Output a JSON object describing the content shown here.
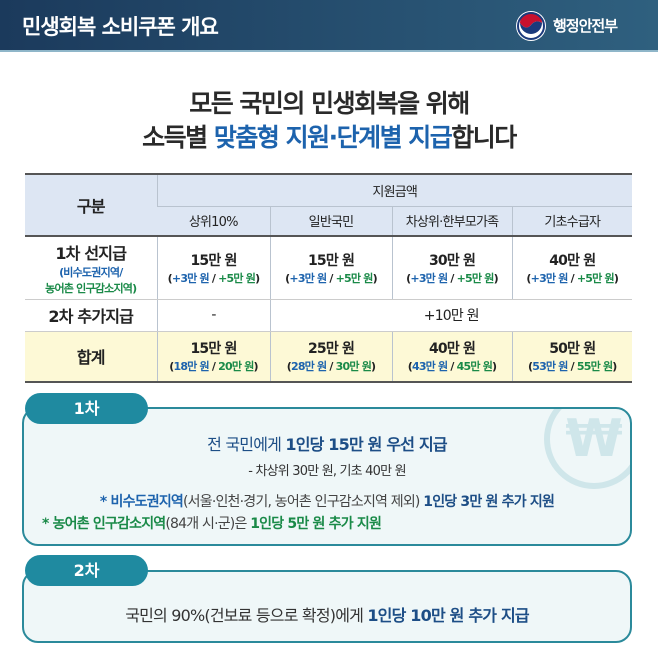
{
  "header": {
    "title": "민생회복 소비쿠폰 개요",
    "ministry": "행정안전부"
  },
  "headline": {
    "line1": "모든 국민의 민생회복을 위해",
    "line2_pre": "소득별 ",
    "line2_accent": "맞춤형 지원·단계별 지급",
    "line2_post": "합니다"
  },
  "table": {
    "category_header": "구분",
    "amount_header": "지원금액",
    "columns": [
      "상위10%",
      "일반국민",
      "차상위·한부모가족",
      "기초수급자"
    ],
    "row1": {
      "label": "1차 선지급",
      "sub_blue": "(비수도권지역/",
      "sub_green": "농어촌 인구감소지역)",
      "cells": [
        {
          "main": "15만 원",
          "blue": "+3만 원",
          "green": "+5만 원"
        },
        {
          "main": "15만 원",
          "blue": "+3만 원",
          "green": "+5만 원"
        },
        {
          "main": "30만 원",
          "blue": "+3만 원",
          "green": "+5만 원"
        },
        {
          "main": "40만 원",
          "blue": "+3만 원",
          "green": "+5만 원"
        }
      ]
    },
    "row2": {
      "label": "2차 추가지급",
      "first": "-",
      "rest": "+10만 원"
    },
    "row3": {
      "label": "합계",
      "cells": [
        {
          "main": "15만 원",
          "blue": "18만 원",
          "green": "20만 원"
        },
        {
          "main": "25만 원",
          "blue": "28만 원",
          "green": "30만 원"
        },
        {
          "main": "40만 원",
          "blue": "43만 원",
          "green": "45만 원"
        },
        {
          "main": "50만 원",
          "blue": "53만 원",
          "green": "55만 원"
        }
      ]
    }
  },
  "phase1": {
    "tab": "1차",
    "main_pre": "전 국민에게 ",
    "main_bold": "1인당 15만 원 우선 지급",
    "sub": "- 차상위 30만 원, 기초 40만 원",
    "note1_bold": "* 비수도권지역",
    "note1_mid": "(서울·인천·경기, 농어촌 인구감소지역 제외) ",
    "note1_end": "1인당 3만 원 추가 지원",
    "note2_bold": "* 농어촌 인구감소지역",
    "note2_mid": "(84개 시·군)은 ",
    "note2_end": "1인당 5만 원 추가 지원",
    "icon": "won-icon"
  },
  "phase2": {
    "tab": "2차",
    "main_pre": "국민의 90%(건보료 등으로 확정)에게 ",
    "main_bold": "1인당 10만 원 추가 지급"
  },
  "colors": {
    "blue": "#1d63ad",
    "green": "#1a8a48",
    "teal": "#1f8aa0",
    "header": "#1b3a5c"
  }
}
